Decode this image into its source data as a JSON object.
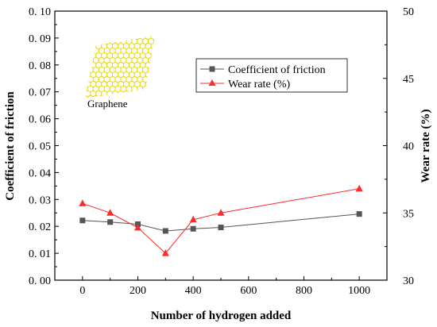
{
  "chart_data": {
    "type": "line",
    "xlabel": "Number of hydrogen added",
    "ylabel_left": "Coefficient of friction",
    "ylabel_right": "Wear rate (%)",
    "xlim": [
      -100,
      1100
    ],
    "ylim_left": [
      0.0,
      0.1
    ],
    "ylim_right": [
      30,
      50
    ],
    "x_ticks": [
      0,
      200,
      400,
      600,
      800,
      1000
    ],
    "x_tick_labels": [
      "0",
      "200",
      "400",
      "600",
      "800",
      "1000"
    ],
    "y_left_ticks": [
      0.0,
      0.01,
      0.02,
      0.03,
      0.04,
      0.05,
      0.06,
      0.07,
      0.08,
      0.09,
      0.1
    ],
    "y_left_tick_labels": [
      "0. 00",
      "0. 01",
      "0. 02",
      "0. 03",
      "0. 04",
      "0. 05",
      "0. 06",
      "0. 07",
      "0. 08",
      "0. 09",
      "0. 10"
    ],
    "y_right_ticks": [
      30,
      35,
      40,
      45,
      50
    ],
    "y_right_tick_labels": [
      "30",
      "35",
      "40",
      "45",
      "50"
    ],
    "grid": false,
    "legend_position": "top-right",
    "annotation": "Graphene",
    "series": [
      {
        "name": "Coefficient of friction",
        "axis": "left",
        "marker": "square",
        "color": "#555555",
        "x": [
          0,
          100,
          200,
          300,
          400,
          500,
          1000
        ],
        "y": [
          0.0222,
          0.0216,
          0.0208,
          0.0183,
          0.0191,
          0.0196,
          0.0246
        ]
      },
      {
        "name": "Wear rate (%)",
        "axis": "right",
        "marker": "triangle",
        "color": "#ff2a2a",
        "x": [
          0,
          100,
          200,
          300,
          400,
          500,
          1000
        ],
        "y": [
          35.7,
          35.0,
          33.9,
          32.0,
          34.5,
          35.0,
          36.8
        ]
      }
    ]
  }
}
